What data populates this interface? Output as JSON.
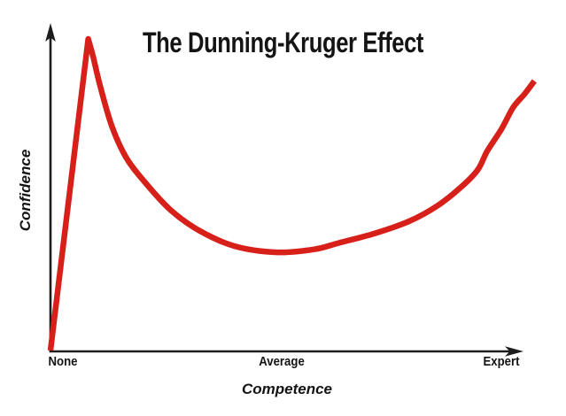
{
  "page": {
    "background": "#ffffff"
  },
  "chart_data": {
    "type": "line",
    "title": "The Dunning-Kruger Effect",
    "xlabel": "Competence",
    "ylabel": "Confidence",
    "x_tick_labels": [
      "None",
      "Average",
      "Expert"
    ],
    "x_tick_positions": [
      2.6,
      48.9,
      95.5
    ],
    "y_tick_labels": [],
    "xlim": [
      0,
      103
    ],
    "ylim": [
      0,
      105
    ],
    "grid": false,
    "legend": "none",
    "axes_style": "arrow-tipped conceptual axes, no numeric scale",
    "styles": {
      "curve_color": "#d8201a",
      "curve_width": 6.5,
      "axis_color": "#1c1c1c",
      "text_color": "#141414"
    },
    "series": [
      {
        "name": "confidence-vs-competence",
        "description": "Steep linear rise to a sharp peak at low competence, rapid decay to a shallow valley near average competence, then gradual accelerating rise toward expert",
        "peak_index": 1,
        "points": [
          [
            0,
            0
          ],
          [
            8,
            100
          ],
          [
            9,
            94.5
          ],
          [
            10.5,
            85
          ],
          [
            13,
            72
          ],
          [
            16,
            62
          ],
          [
            20,
            54
          ],
          [
            25.5,
            45
          ],
          [
            31.5,
            38.5
          ],
          [
            39,
            33.5
          ],
          [
            48,
            31.5
          ],
          [
            56,
            32.5
          ],
          [
            61,
            34.5
          ],
          [
            68.5,
            37.5
          ],
          [
            76,
            41.5
          ],
          [
            82,
            46.5
          ],
          [
            87,
            52.5
          ],
          [
            90.5,
            58
          ],
          [
            92.5,
            64
          ],
          [
            95.5,
            71
          ],
          [
            98,
            78
          ],
          [
            100.5,
            82.5
          ],
          [
            102.5,
            86.5
          ]
        ]
      }
    ]
  }
}
